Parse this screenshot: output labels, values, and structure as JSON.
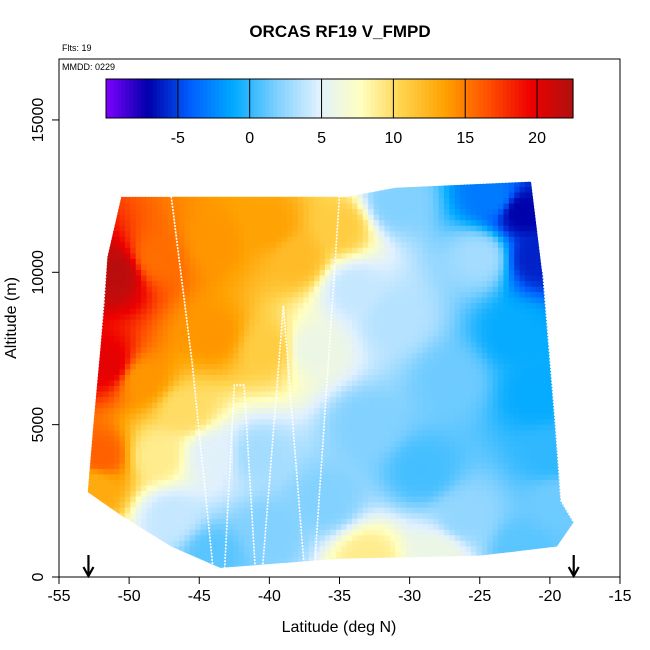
{
  "chart_data": {
    "type": "heatmap",
    "title": "ORCAS RF19 V_FMPD",
    "subtitle_flights": "Flts: 19",
    "subtitle_date": "MMDD: 0229",
    "xlabel": "Latitude (deg N)",
    "ylabel": "Altitude (m)",
    "xlim": [
      -55,
      -15
    ],
    "ylim": [
      0,
      17000
    ],
    "x_ticks": [
      -55,
      -50,
      -45,
      -40,
      -35,
      -30,
      -25,
      -20,
      -15
    ],
    "x_tick_labels": [
      "-55",
      "-50",
      "-45",
      "-40",
      "-35",
      "-30",
      "-25",
      "-20",
      "-15"
    ],
    "y_ticks": [
      0,
      5000,
      10000,
      15000
    ],
    "y_tick_labels": [
      "0",
      "5000",
      "10000",
      "15000"
    ],
    "colorbar": {
      "range": [
        -10,
        22.5
      ],
      "ticks": [
        -5,
        0,
        5,
        10,
        15,
        20
      ],
      "tick_labels": [
        "-5",
        "0",
        "5",
        "10",
        "15",
        "20"
      ],
      "colors": [
        "#7f00ff",
        "#0000aa",
        "#0060ff",
        "#00aaff",
        "#7ccfff",
        "#dff0ff",
        "#ffffc0",
        "#ffd24a",
        "#ffa000",
        "#ff5000",
        "#ee0000",
        "#b01010"
      ]
    },
    "domain_outline": [
      [
        -53.0,
        2800
      ],
      [
        -52.6,
        5000
      ],
      [
        -52.1,
        7500
      ],
      [
        -51.6,
        10500
      ],
      [
        -50.6,
        12500
      ],
      [
        -47.0,
        12500
      ],
      [
        -34.5,
        12500
      ],
      [
        -31.0,
        12800
      ],
      [
        -21.3,
        13000
      ],
      [
        -20.5,
        10000
      ],
      [
        -19.6,
        5000
      ],
      [
        -19.2,
        2500
      ],
      [
        -18.3,
        1800
      ],
      [
        -19.5,
        1000
      ],
      [
        -25.0,
        700
      ],
      [
        -35.0,
        600
      ],
      [
        -43.5,
        300
      ],
      [
        -47.0,
        1000
      ],
      [
        -50.5,
        2000
      ]
    ],
    "field_points": [
      [
        -51.0,
        10000,
        22
      ],
      [
        -51.5,
        7000,
        20
      ],
      [
        -52.0,
        4000,
        16
      ],
      [
        -52.5,
        3000,
        13
      ],
      [
        -48.0,
        10500,
        15.5
      ],
      [
        -49.0,
        6500,
        14
      ],
      [
        -48.0,
        4000,
        9
      ],
      [
        -44.0,
        11000,
        14
      ],
      [
        -40.0,
        11500,
        13.5
      ],
      [
        -38.0,
        10500,
        12
      ],
      [
        -35.0,
        11500,
        11
      ],
      [
        -44.0,
        8000,
        14
      ],
      [
        -40.0,
        7500,
        11
      ],
      [
        -37.0,
        7500,
        6
      ],
      [
        -46.0,
        5500,
        10
      ],
      [
        -44.0,
        4000,
        5
      ],
      [
        -41.0,
        4000,
        3
      ],
      [
        -47.0,
        2000,
        4
      ],
      [
        -44.0,
        800,
        1
      ],
      [
        -40.0,
        1500,
        2
      ],
      [
        -36.0,
        2500,
        2
      ],
      [
        -33.0,
        600,
        9
      ],
      [
        -28.0,
        700,
        6
      ],
      [
        -22.0,
        900,
        1
      ],
      [
        -34.0,
        9500,
        4
      ],
      [
        -33.0,
        5000,
        2
      ],
      [
        -31.0,
        12300,
        2
      ],
      [
        -29.0,
        3500,
        0.5
      ],
      [
        -27.0,
        6500,
        1.5
      ],
      [
        -25.0,
        10500,
        3
      ],
      [
        -24.0,
        12500,
        -3
      ],
      [
        -22.0,
        12000,
        -7
      ],
      [
        -21.0,
        10500,
        -6
      ],
      [
        -22.5,
        8000,
        -1
      ],
      [
        -21.0,
        6000,
        -1
      ],
      [
        -20.0,
        4000,
        0
      ],
      [
        -19.5,
        2500,
        1.5
      ],
      [
        -26.0,
        2000,
        2.5
      ],
      [
        -31.0,
        8500,
        3.5
      ]
    ],
    "flight_track": [
      [
        -53.0,
        2800
      ],
      [
        -52.6,
        5000
      ],
      [
        -52.2,
        7000
      ],
      [
        -51.8,
        9000
      ],
      [
        -51.6,
        10500
      ],
      [
        -50.6,
        12500
      ],
      [
        -47.0,
        12500
      ],
      [
        -45.5,
        7000
      ],
      [
        -44.0,
        200
      ],
      [
        -43.2,
        200
      ],
      [
        -42.5,
        6300
      ],
      [
        -41.8,
        6300
      ],
      [
        -41.0,
        200
      ],
      [
        -40.5,
        200
      ],
      [
        -39.0,
        8900
      ],
      [
        -37.5,
        200
      ],
      [
        -36.8,
        200
      ],
      [
        -35.0,
        12500
      ],
      [
        -34.5,
        12500
      ],
      [
        -31.0,
        12800
      ],
      [
        -21.3,
        13000
      ],
      [
        -20.5,
        10000
      ],
      [
        -19.6,
        5000
      ],
      [
        -19.2,
        2500
      ],
      [
        -18.3,
        1800
      ]
    ],
    "markers": [
      {
        "x": -52.9,
        "type": "down-arrow"
      },
      {
        "x": -18.3,
        "type": "down-arrow"
      }
    ]
  }
}
